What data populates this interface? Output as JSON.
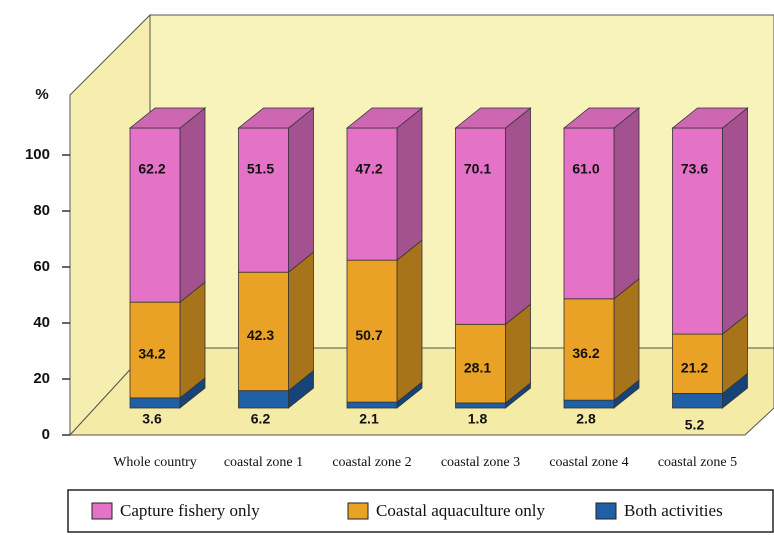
{
  "chart_data": {
    "type": "stacked_bar_3d",
    "y_label": "%",
    "categories": [
      "Whole country",
      "coastal zone 1",
      "coastal zone 2",
      "coastal zone 3",
      "coastal zone 4",
      "coastal zone 5"
    ],
    "series": [
      {
        "name": "Capture fishery only",
        "color": "#e472c6",
        "values": [
          62.2,
          51.5,
          47.2,
          70.1,
          61.0,
          73.6
        ],
        "value_labels": [
          "62.2",
          "51.5",
          "47.2",
          "70.1",
          "61.0",
          "73.6"
        ]
      },
      {
        "name": "Coastal aquaculture only",
        "color": "#e9a126",
        "values": [
          34.2,
          42.3,
          50.7,
          28.1,
          36.2,
          21.2
        ],
        "value_labels": [
          "34.2",
          "42.3",
          "50.7",
          "28.1",
          "36.2",
          "21.2"
        ]
      },
      {
        "name": "Both activities",
        "color": "#1f5fa6",
        "values": [
          3.6,
          6.2,
          2.1,
          1.8,
          2.8,
          5.2
        ],
        "value_labels": [
          "3.6",
          "6.2",
          "2.1",
          "1.8",
          "2.8",
          "5.2"
        ]
      }
    ],
    "ylim": [
      0,
      100
    ],
    "yticks": [
      0,
      20,
      40,
      60,
      80,
      100
    ]
  }
}
